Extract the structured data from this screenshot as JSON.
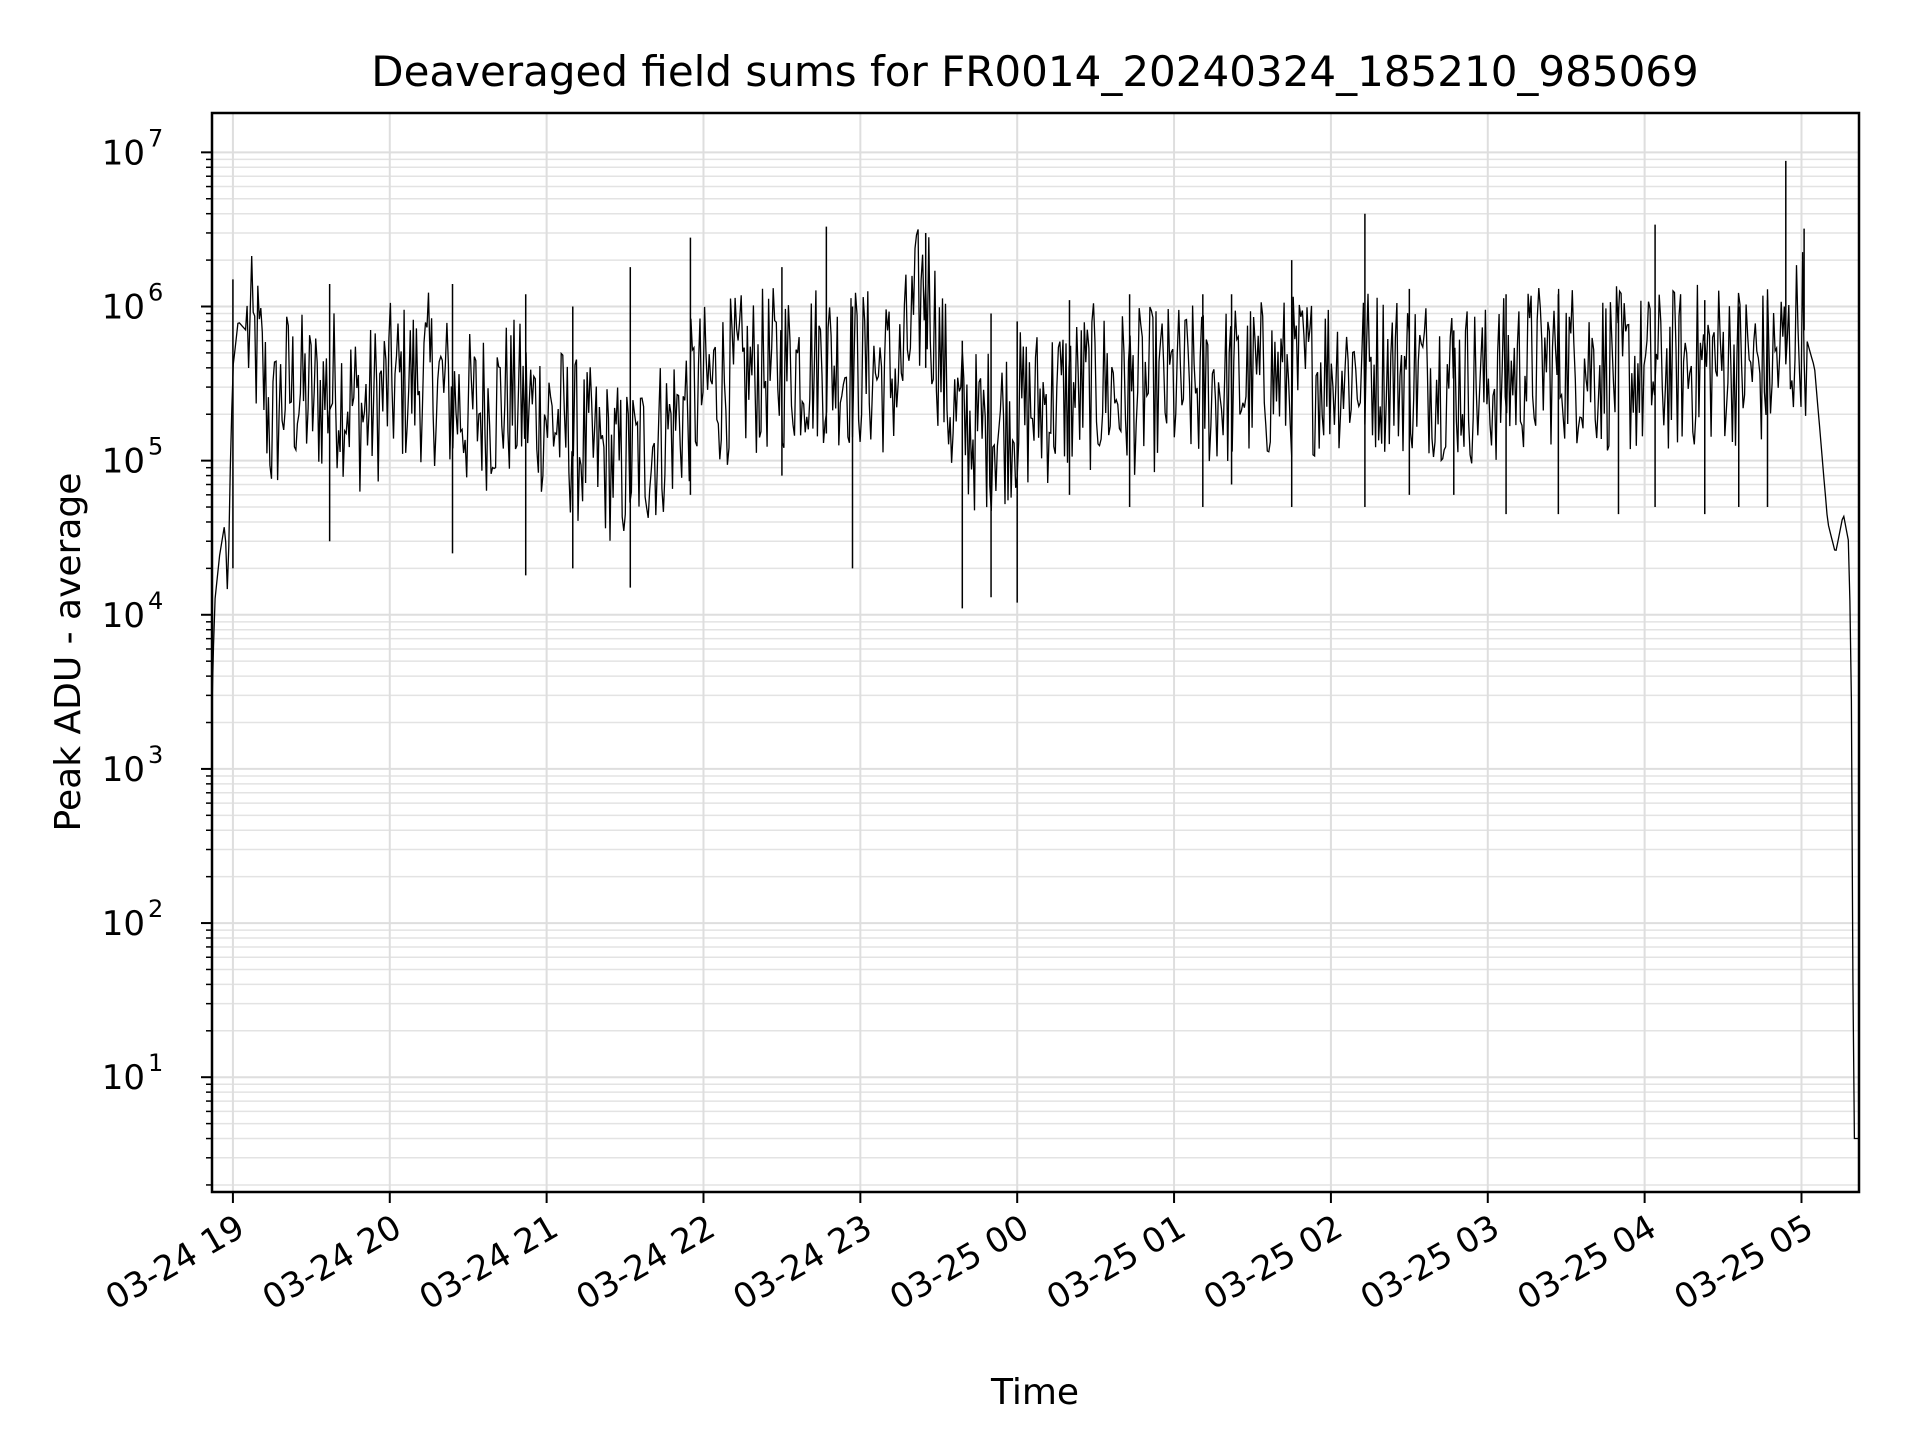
{
  "chart_data": {
    "type": "line",
    "title": "Deaveraged field sums for FR0014_20240324_185210_985069",
    "xlabel": "Time",
    "ylabel": "Peak ADU - average",
    "yscale": "log",
    "ylim": [
      1.8,
      18000000
    ],
    "xlim": [
      "2024-03-24 18:52",
      "2024-03-25 05:22"
    ],
    "grid": true,
    "grid_minor": true,
    "line_color": "#000000",
    "x_ticks": [
      "03-24 19",
      "03-24 20",
      "03-24 21",
      "03-24 22",
      "03-24 23",
      "03-25 00",
      "03-25 01",
      "03-25 02",
      "03-25 03",
      "03-25 04",
      "03-25 05"
    ],
    "y_ticks": [
      {
        "base": "10",
        "exp": "1",
        "value": 10
      },
      {
        "base": "10",
        "exp": "2",
        "value": 100
      },
      {
        "base": "10",
        "exp": "3",
        "value": 1000
      },
      {
        "base": "10",
        "exp": "4",
        "value": 10000
      },
      {
        "base": "10",
        "exp": "5",
        "value": 100000
      },
      {
        "base": "10",
        "exp": "6",
        "value": 1000000
      },
      {
        "base": "10",
        "exp": "7",
        "value": 10000000
      }
    ],
    "series": [
      {
        "x": [
          "2024-03-24 18:52",
          "2024-03-24 18:53",
          "2024-03-24 18:55",
          "2024-03-24 18:57",
          "2024-03-24 18:58",
          "2024-03-24 18:59",
          "2024-03-24 19:00",
          "2024-03-24 19:02",
          "2024-03-24 19:05",
          "2024-03-24 19:10",
          "2024-03-24 19:15",
          "2024-03-24 19:20",
          "2024-03-24 19:30",
          "2024-03-24 19:40",
          "2024-03-24 19:50",
          "2024-03-24 20:00",
          "2024-03-24 20:15",
          "2024-03-24 20:30",
          "2024-03-24 20:45",
          "2024-03-24 21:00",
          "2024-03-24 21:15",
          "2024-03-24 21:30",
          "2024-03-24 21:45",
          "2024-03-24 22:00",
          "2024-03-24 22:15",
          "2024-03-24 22:30",
          "2024-03-24 22:45",
          "2024-03-24 23:00",
          "2024-03-24 23:15",
          "2024-03-24 23:25",
          "2024-03-24 23:35",
          "2024-03-24 23:45",
          "2024-03-25 00:00",
          "2024-03-25 00:15",
          "2024-03-25 00:30",
          "2024-03-25 00:45",
          "2024-03-25 01:00",
          "2024-03-25 01:15",
          "2024-03-25 01:30",
          "2024-03-25 01:45",
          "2024-03-25 02:00",
          "2024-03-25 02:15",
          "2024-03-25 02:30",
          "2024-03-25 02:45",
          "2024-03-25 03:00",
          "2024-03-25 03:15",
          "2024-03-25 03:30",
          "2024-03-25 03:45",
          "2024-03-25 04:00",
          "2024-03-25 04:15",
          "2024-03-25 04:30",
          "2024-03-25 04:45",
          "2024-03-25 04:55",
          "2024-03-25 05:00",
          "2024-03-25 05:05",
          "2024-03-25 05:10",
          "2024-03-25 05:13",
          "2024-03-25 05:16",
          "2024-03-25 05:18",
          "2024-03-25 05:19",
          "2024-03-25 05:20",
          "2024-03-25 05:22"
        ],
        "y": [
          2500,
          12000,
          25000,
          40000,
          12000,
          90000,
          400000,
          800000,
          700000,
          500000,
          150000,
          300000,
          250000,
          300000,
          200000,
          300000,
          350000,
          200000,
          250000,
          200000,
          120000,
          90000,
          150000,
          300000,
          350000,
          400000,
          450000,
          400000,
          350000,
          1500000,
          200000,
          150000,
          200000,
          250000,
          300000,
          280000,
          300000,
          300000,
          320000,
          350000,
          400000,
          400000,
          380000,
          350000,
          300000,
          400000,
          450000,
          400000,
          350000,
          400000,
          450000,
          400000,
          500000,
          800000,
          400000,
          40000,
          25000,
          45000,
          30000,
          5000,
          4,
          4
        ]
      }
    ],
    "spikes": [
      {
        "x": "2024-03-24 19:00",
        "high": 1500000,
        "low": 20000
      },
      {
        "x": "2024-03-24 19:37",
        "high": 1400000,
        "low": 30000
      },
      {
        "x": "2024-03-24 20:24",
        "high": 1400000,
        "low": 25000
      },
      {
        "x": "2024-03-24 20:52",
        "high": 1200000,
        "low": 18000
      },
      {
        "x": "2024-03-24 21:10",
        "high": 1000000,
        "low": 20000
      },
      {
        "x": "2024-03-24 21:32",
        "high": 1800000,
        "low": 15000
      },
      {
        "x": "2024-03-24 21:55",
        "high": 2800000,
        "low": 60000
      },
      {
        "x": "2024-03-24 22:30",
        "high": 1800000,
        "low": 80000
      },
      {
        "x": "2024-03-24 22:47",
        "high": 3300000,
        "low": 150000
      },
      {
        "x": "2024-03-24 22:57",
        "high": 1000000,
        "low": 20000
      },
      {
        "x": "2024-03-24 23:25",
        "high": 3000000,
        "low": 400000
      },
      {
        "x": "2024-03-24 23:39",
        "high": 600000,
        "low": 11000
      },
      {
        "x": "2024-03-24 23:50",
        "high": 900000,
        "low": 13000
      },
      {
        "x": "2024-03-25 00:00",
        "high": 800000,
        "low": 12000
      },
      {
        "x": "2024-03-25 00:20",
        "high": 1100000,
        "low": 60000
      },
      {
        "x": "2024-03-25 00:43",
        "high": 1200000,
        "low": 50000
      },
      {
        "x": "2024-03-25 01:11",
        "high": 1200000,
        "low": 50000
      },
      {
        "x": "2024-03-25 01:22",
        "high": 1200000,
        "low": 70000
      },
      {
        "x": "2024-03-25 01:45",
        "high": 2000000,
        "low": 50000
      },
      {
        "x": "2024-03-25 02:13",
        "high": 4000000,
        "low": 50000
      },
      {
        "x": "2024-03-25 02:30",
        "high": 1300000,
        "low": 60000
      },
      {
        "x": "2024-03-25 02:47",
        "high": 700000,
        "low": 60000
      },
      {
        "x": "2024-03-25 03:07",
        "high": 1200000,
        "low": 45000
      },
      {
        "x": "2024-03-25 03:27",
        "high": 1200000,
        "low": 45000
      },
      {
        "x": "2024-03-25 03:50",
        "high": 1000000,
        "low": 45000
      },
      {
        "x": "2024-03-25 04:04",
        "high": 3400000,
        "low": 50000
      },
      {
        "x": "2024-03-25 04:23",
        "high": 1100000,
        "low": 45000
      },
      {
        "x": "2024-03-25 04:36",
        "high": 1000000,
        "low": 50000
      },
      {
        "x": "2024-03-25 04:47",
        "high": 1100000,
        "low": 50000
      },
      {
        "x": "2024-03-25 04:54",
        "high": 8800000,
        "low": 500000
      },
      {
        "x": "2024-03-25 05:01",
        "high": 3200000,
        "low": 700000
      }
    ]
  }
}
